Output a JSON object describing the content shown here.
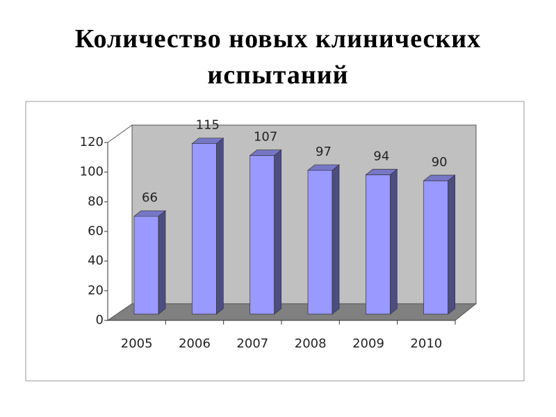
{
  "chart_data": {
    "type": "bar3d",
    "title": "Количество новых клинических испытаний",
    "categories": [
      "2005",
      "2006",
      "2007",
      "2008",
      "2009",
      "2010"
    ],
    "values": [
      66,
      115,
      107,
      97,
      94,
      90
    ],
    "color": "#9999ff",
    "ylim": [
      0,
      120
    ],
    "yticks": [
      0,
      20,
      40,
      60,
      80,
      100,
      120
    ]
  }
}
